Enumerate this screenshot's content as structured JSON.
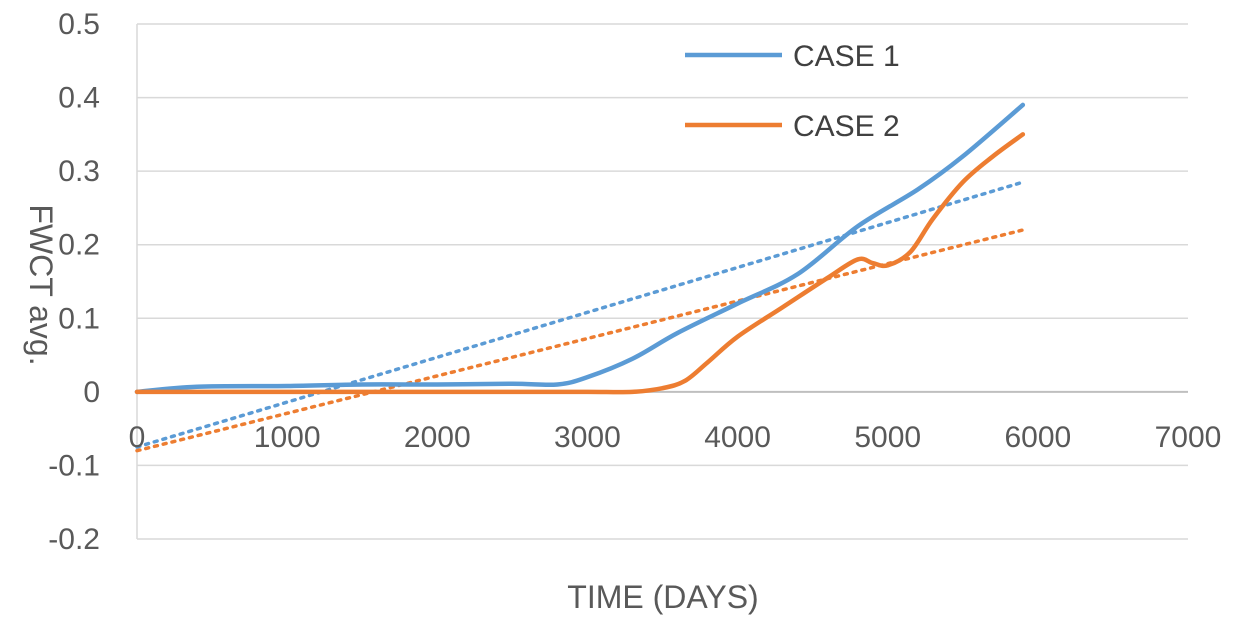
{
  "chart_data": {
    "type": "line",
    "title": "",
    "xlabel": "TIME (DAYS)",
    "ylabel": "FWCT avg.",
    "xlim": [
      0,
      7000
    ],
    "ylim": [
      -0.2,
      0.5
    ],
    "x_ticks": [
      0,
      1000,
      2000,
      3000,
      4000,
      5000,
      6000,
      7000
    ],
    "x_tick_labels": [
      "0",
      "1000",
      "2000",
      "3000",
      "4000",
      "5000",
      "6000",
      "7000"
    ],
    "y_ticks": [
      -0.2,
      -0.1,
      0,
      0.1,
      0.2,
      0.3,
      0.4,
      0.5
    ],
    "y_tick_labels": [
      "-0.2",
      "-0.1",
      "0",
      "0.1",
      "0.2",
      "0.3",
      "0.4",
      "0.5"
    ],
    "grid": true,
    "legend_position": "top-right",
    "series": [
      {
        "name": "CASE 1",
        "color": "#5b9bd5",
        "x": [
          0,
          400,
          1000,
          1500,
          2000,
          2500,
          2800,
          3000,
          3300,
          3600,
          4000,
          4400,
          4800,
          5200,
          5500,
          5900
        ],
        "y": [
          0,
          0.007,
          0.008,
          0.01,
          0.01,
          0.011,
          0.01,
          0.02,
          0.045,
          0.08,
          0.12,
          0.16,
          0.225,
          0.275,
          0.32,
          0.39
        ]
      },
      {
        "name": "CASE 2",
        "color": "#ed7d31",
        "x": [
          0,
          500,
          1000,
          1500,
          2000,
          2500,
          3000,
          3300,
          3500,
          3650,
          3800,
          4000,
          4300,
          4600,
          4800,
          4900,
          5000,
          5150,
          5300,
          5500,
          5700,
          5900
        ],
        "y": [
          0,
          0,
          0,
          0,
          0,
          0,
          0,
          0,
          0.005,
          0.015,
          0.04,
          0.075,
          0.115,
          0.155,
          0.18,
          0.175,
          0.172,
          0.19,
          0.235,
          0.285,
          0.32,
          0.35
        ]
      }
    ],
    "trendlines": [
      {
        "series": "CASE 1",
        "style": "dotted",
        "color": "#5b9bd5",
        "x": [
          0,
          5900
        ],
        "y": [
          -0.075,
          0.285
        ]
      },
      {
        "series": "CASE 2",
        "style": "dotted",
        "color": "#ed7d31",
        "x": [
          0,
          5900
        ],
        "y": [
          -0.08,
          0.22
        ]
      }
    ]
  }
}
